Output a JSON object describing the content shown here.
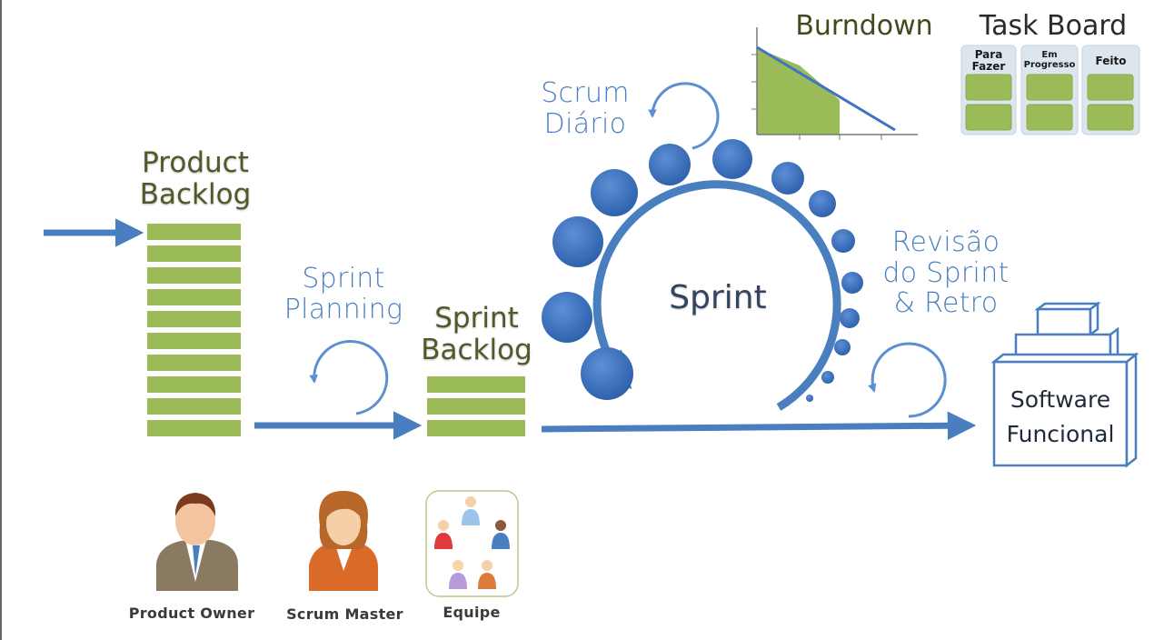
{
  "labels": {
    "product_backlog": [
      "Product",
      "Backlog"
    ],
    "sprint_planning": [
      "Sprint",
      "Planning"
    ],
    "sprint_backlog": [
      "Sprint",
      "Backlog"
    ],
    "scrum_diario": [
      "Scrum",
      "Diário"
    ],
    "sprint": "Sprint",
    "revisao": [
      "Revisão",
      "do Sprint",
      "& Retro"
    ],
    "software": [
      "Software",
      "Funcional"
    ],
    "burndown": "Burndown",
    "task_board": "Task Board"
  },
  "task_board_columns": [
    {
      "title": [
        "Para",
        "Fazer"
      ]
    },
    {
      "title": [
        "Em",
        "Progresso"
      ]
    },
    {
      "title": [
        "Feito"
      ]
    }
  ],
  "roles": [
    "Product Owner",
    "Scrum Master",
    "Equipe"
  ],
  "colors": {
    "backlog_green": "#9bbb59",
    "flow_blue": "#4a7fbf",
    "dot_blue": "#3e74c2",
    "task_panel": "#dce6ef",
    "label_green": "#4e5a2a"
  },
  "icons": [
    "product-owner-avatar-icon",
    "scrum-master-avatar-icon",
    "team-group-icon",
    "software-box-icon",
    "daily-cycle-icon"
  ]
}
